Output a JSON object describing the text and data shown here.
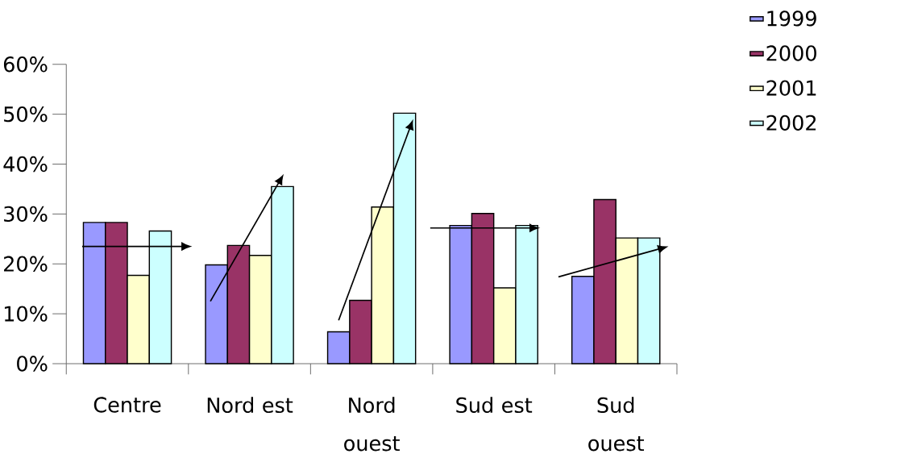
{
  "chart_data": {
    "type": "bar",
    "categories": [
      "Centre",
      "Nord est",
      "Nord ouest",
      "Sud est",
      "Sud ouest"
    ],
    "series": [
      {
        "name": "1999",
        "color": "#9999ff",
        "values": [
          28.3,
          19.8,
          6.4,
          27.7,
          17.5
        ]
      },
      {
        "name": "2000",
        "color": "#993366",
        "values": [
          28.3,
          23.7,
          12.7,
          30.1,
          32.9
        ]
      },
      {
        "name": "2001",
        "color": "#ffffcc",
        "values": [
          17.7,
          21.7,
          31.4,
          15.2,
          25.2
        ]
      },
      {
        "name": "2002",
        "color": "#ccffff",
        "values": [
          26.6,
          35.5,
          50.2,
          27.7,
          25.2
        ]
      }
    ],
    "ylim": [
      0,
      60
    ],
    "yticks": [
      {
        "value": 0,
        "label": "0%"
      },
      {
        "value": 10,
        "label": "10%"
      },
      {
        "value": 20,
        "label": "20%"
      },
      {
        "value": 30,
        "label": "30%"
      },
      {
        "value": 40,
        "label": "40%"
      },
      {
        "value": 50,
        "label": "50%"
      },
      {
        "value": 60,
        "label": "60%"
      }
    ],
    "legend": "right"
  }
}
